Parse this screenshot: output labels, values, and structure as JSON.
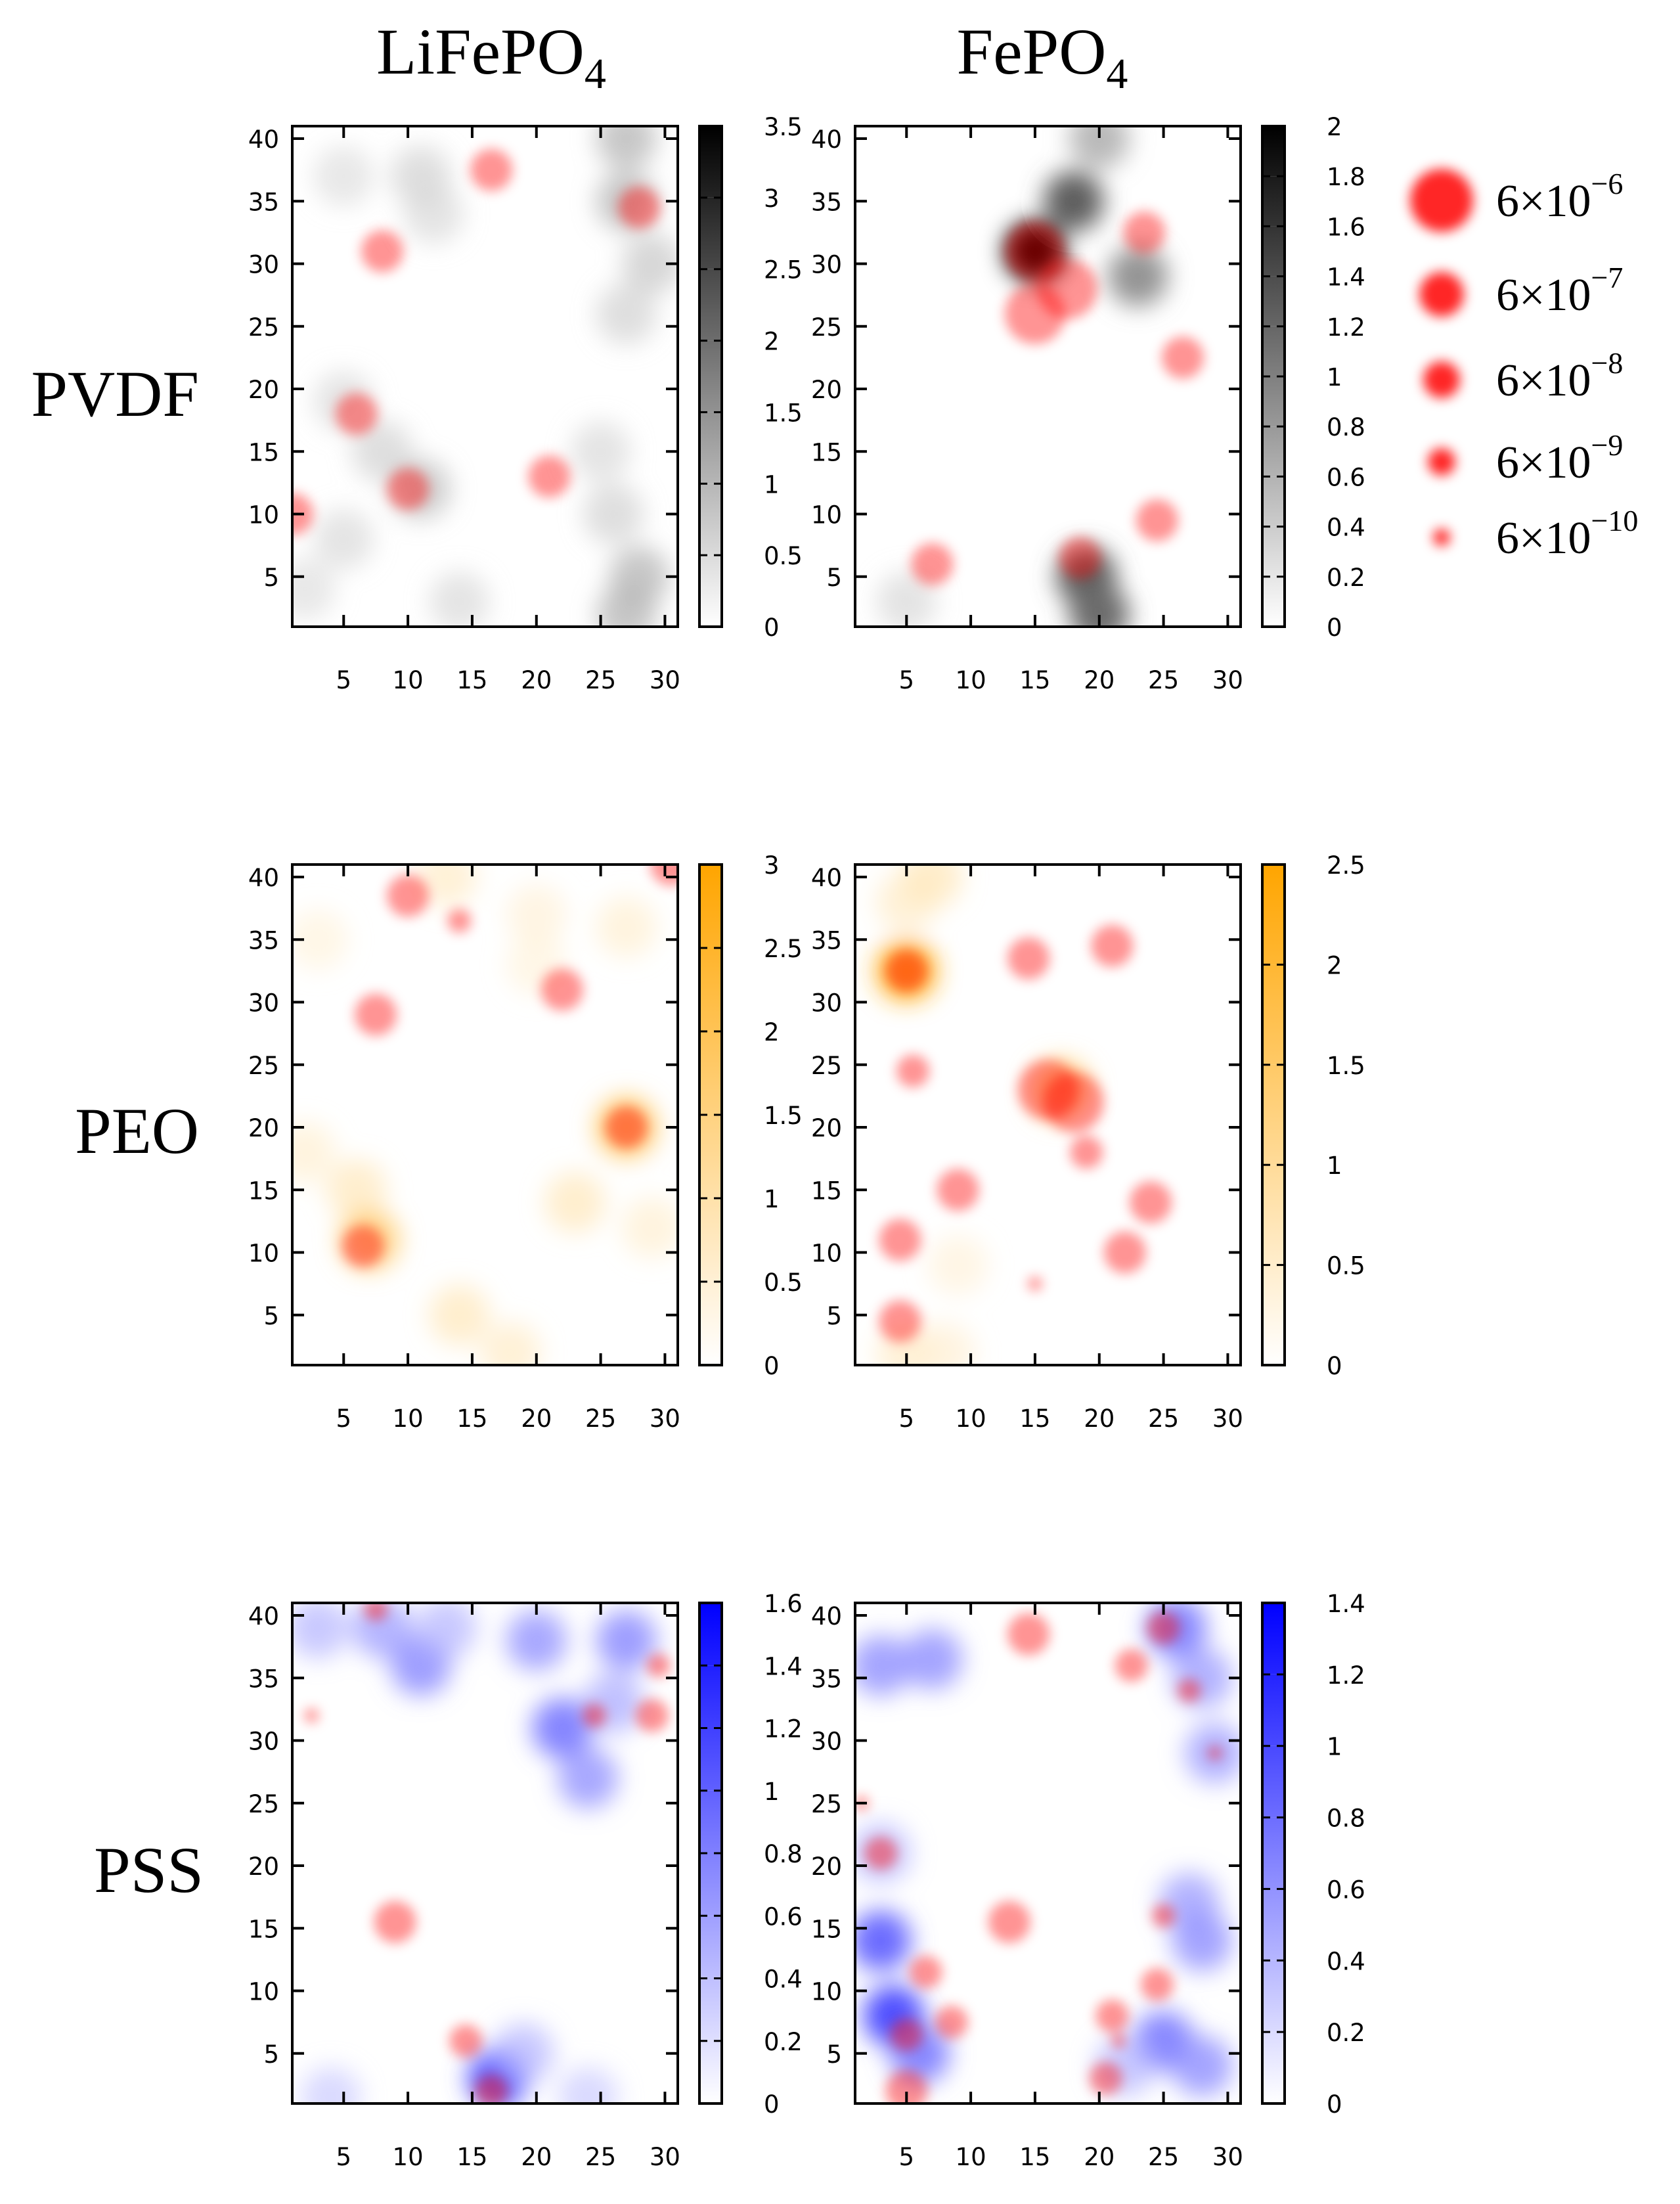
{
  "figure": {
    "column_titles": [
      {
        "text": "LiFePO",
        "sub": "4"
      },
      {
        "text": "FePO",
        "sub": "4"
      }
    ],
    "row_titles": [
      "PVDF",
      "PEO",
      "PSS"
    ],
    "legend": {
      "mantissa": "6×10",
      "exponents": [
        "−6",
        "−7",
        "−8",
        "−9",
        "−10"
      ],
      "marker_color": "#ff0000"
    }
  },
  "chart_data": [
    {
      "type": "heatmap",
      "row": "PVDF",
      "column": "LiFePO4",
      "colormap": {
        "low": "#ffffff",
        "high": "#000000"
      },
      "xlim": [
        1,
        31
      ],
      "ylim": [
        1,
        41
      ],
      "xticks": [
        5,
        10,
        15,
        20,
        25,
        30
      ],
      "yticks": [
        5,
        10,
        15,
        20,
        25,
        30,
        35,
        40
      ],
      "colorbar": {
        "range": [
          0,
          3.5
        ],
        "ticks": [
          "0",
          "0.5",
          "1",
          "1.5",
          "2",
          "2.5",
          "3",
          "3.5"
        ]
      },
      "blobs": [
        {
          "x": 5,
          "y": 37,
          "w": 0.45
        },
        {
          "x": 11,
          "y": 37,
          "w": 0.6
        },
        {
          "x": 12,
          "y": 34,
          "w": 0.5
        },
        {
          "x": 27,
          "y": 40,
          "w": 0.9
        },
        {
          "x": 27,
          "y": 35,
          "w": 0.9
        },
        {
          "x": 29,
          "y": 30,
          "w": 0.7
        },
        {
          "x": 27,
          "y": 26,
          "w": 0.6
        },
        {
          "x": 5,
          "y": 19,
          "w": 0.5
        },
        {
          "x": 8,
          "y": 15,
          "w": 0.6
        },
        {
          "x": 11,
          "y": 12,
          "w": 0.8
        },
        {
          "x": 5,
          "y": 8,
          "w": 0.5
        },
        {
          "x": 2,
          "y": 4,
          "w": 0.45
        },
        {
          "x": 14,
          "y": 3,
          "w": 0.5
        },
        {
          "x": 25,
          "y": 15,
          "w": 0.5
        },
        {
          "x": 26,
          "y": 10,
          "w": 0.6
        },
        {
          "x": 28,
          "y": 5,
          "w": 0.9
        },
        {
          "x": 27,
          "y": 2,
          "w": 0.9
        }
      ],
      "markers": [
        {
          "x": 16.5,
          "y": 37.5,
          "size": 6e-07
        },
        {
          "x": 28,
          "y": 34.5,
          "size": 6e-07
        },
        {
          "x": 8,
          "y": 31,
          "size": 6e-07
        },
        {
          "x": 6,
          "y": 18,
          "size": 6e-07
        },
        {
          "x": 10,
          "y": 12,
          "size": 6e-07
        },
        {
          "x": 21,
          "y": 13,
          "size": 6e-07
        },
        {
          "x": 1,
          "y": 10,
          "size": 6e-07
        }
      ]
    },
    {
      "type": "heatmap",
      "row": "PVDF",
      "column": "FePO4",
      "colormap": {
        "low": "#ffffff",
        "high": "#000000"
      },
      "xlim": [
        1,
        31
      ],
      "ylim": [
        1,
        41
      ],
      "xticks": [
        5,
        10,
        15,
        20,
        25,
        30
      ],
      "yticks": [
        5,
        10,
        15,
        20,
        25,
        30,
        35,
        40
      ],
      "colorbar": {
        "range": [
          0,
          2
        ],
        "ticks": [
          "0",
          "0.2",
          "0.4",
          "0.6",
          "0.8",
          "1",
          "1.2",
          "1.4",
          "1.6",
          "1.8",
          "2"
        ]
      },
      "blobs": [
        {
          "x": 15,
          "y": 31,
          "w": 1.9
        },
        {
          "x": 18,
          "y": 35,
          "w": 1.1
        },
        {
          "x": 20,
          "y": 40,
          "w": 0.6
        },
        {
          "x": 23,
          "y": 29,
          "w": 0.8
        },
        {
          "x": 19,
          "y": 5,
          "w": 1.1
        },
        {
          "x": 20,
          "y": 2,
          "w": 1.0
        },
        {
          "x": 5,
          "y": 3,
          "w": 0.3
        }
      ],
      "markers": [
        {
          "x": 15,
          "y": 31,
          "size": 6e-06
        },
        {
          "x": 17.5,
          "y": 28,
          "size": 6e-06
        },
        {
          "x": 15,
          "y": 26,
          "size": 6e-06
        },
        {
          "x": 23.5,
          "y": 32.5,
          "size": 6e-07
        },
        {
          "x": 26.5,
          "y": 22.5,
          "size": 6e-07
        },
        {
          "x": 24.5,
          "y": 9.5,
          "size": 6e-07
        },
        {
          "x": 18.5,
          "y": 6.5,
          "size": 6e-07
        },
        {
          "x": 7,
          "y": 6,
          "size": 6e-07
        }
      ]
    },
    {
      "type": "heatmap",
      "row": "PEO",
      "column": "LiFePO4",
      "colormap": {
        "low": "#ffffff",
        "high": "#ffa500"
      },
      "xlim": [
        1,
        31
      ],
      "ylim": [
        1,
        41
      ],
      "xticks": [
        5,
        10,
        15,
        20,
        25,
        30
      ],
      "yticks": [
        5,
        10,
        15,
        20,
        25,
        30,
        35,
        40
      ],
      "colorbar": {
        "range": [
          0,
          3
        ],
        "ticks": [
          "0",
          "0.5",
          "1",
          "1.5",
          "2",
          "2.5",
          "3"
        ]
      },
      "blobs": [
        {
          "x": 13,
          "y": 40,
          "w": 0.6
        },
        {
          "x": 20,
          "y": 37,
          "w": 0.45
        },
        {
          "x": 27,
          "y": 36,
          "w": 0.5
        },
        {
          "x": 20,
          "y": 33,
          "w": 0.4
        },
        {
          "x": 3,
          "y": 35,
          "w": 0.4
        },
        {
          "x": 27,
          "y": 20,
          "w": 1.5
        },
        {
          "x": 23,
          "y": 14,
          "w": 0.7
        },
        {
          "x": 29,
          "y": 12,
          "w": 0.5
        },
        {
          "x": 6,
          "y": 15,
          "w": 0.7
        },
        {
          "x": 7,
          "y": 11,
          "w": 1.3
        },
        {
          "x": 2,
          "y": 18,
          "w": 0.5
        },
        {
          "x": 14,
          "y": 5,
          "w": 0.7
        },
        {
          "x": 18,
          "y": 2,
          "w": 0.6
        }
      ],
      "markers": [
        {
          "x": 10,
          "y": 38.5,
          "size": 6e-07
        },
        {
          "x": 14,
          "y": 36.5,
          "size": 6e-09
        },
        {
          "x": 22,
          "y": 31,
          "size": 6e-07
        },
        {
          "x": 7.5,
          "y": 29,
          "size": 6e-07
        },
        {
          "x": 27,
          "y": 20,
          "size": 6e-07
        },
        {
          "x": 6.5,
          "y": 10.5,
          "size": 6e-07
        },
        {
          "x": 30.5,
          "y": 41,
          "size": 6e-07
        }
      ]
    },
    {
      "type": "heatmap",
      "row": "PEO",
      "column": "FePO4",
      "colormap": {
        "low": "#ffffff",
        "high": "#ffa500"
      },
      "xlim": [
        1,
        31
      ],
      "ylim": [
        1,
        41
      ],
      "xticks": [
        5,
        10,
        15,
        20,
        25,
        30
      ],
      "yticks": [
        5,
        10,
        15,
        20,
        25,
        30,
        35,
        40
      ],
      "colorbar": {
        "range": [
          0,
          2.5
        ],
        "ticks": [
          "0",
          "0.5",
          "1",
          "1.5",
          "2",
          "2.5"
        ]
      },
      "blobs": [
        {
          "x": 5,
          "y": 32.5,
          "w": 1.9
        },
        {
          "x": 5,
          "y": 38,
          "w": 0.5
        },
        {
          "x": 7,
          "y": 40,
          "w": 0.6
        },
        {
          "x": 17,
          "y": 23,
          "w": 1.1
        },
        {
          "x": 9,
          "y": 9,
          "w": 0.35
        },
        {
          "x": 5,
          "y": 2,
          "w": 0.5
        },
        {
          "x": 8,
          "y": 2,
          "w": 0.4
        }
      ],
      "markers": [
        {
          "x": 5,
          "y": 32.5,
          "size": 6e-07
        },
        {
          "x": 14.5,
          "y": 33.5,
          "size": 6e-07
        },
        {
          "x": 21,
          "y": 34.5,
          "size": 6e-07
        },
        {
          "x": 5.5,
          "y": 24.5,
          "size": 6e-08
        },
        {
          "x": 16,
          "y": 23,
          "size": 6e-06
        },
        {
          "x": 18,
          "y": 22,
          "size": 6e-06
        },
        {
          "x": 19,
          "y": 18,
          "size": 6e-08
        },
        {
          "x": 9,
          "y": 15,
          "size": 6e-07
        },
        {
          "x": 24,
          "y": 14,
          "size": 6e-07
        },
        {
          "x": 4.5,
          "y": 11,
          "size": 6e-07
        },
        {
          "x": 22,
          "y": 10,
          "size": 6e-07
        },
        {
          "x": 15,
          "y": 7.5,
          "size": 6e-10
        },
        {
          "x": 4.5,
          "y": 4.5,
          "size": 6e-07
        }
      ]
    },
    {
      "type": "heatmap",
      "row": "PSS",
      "column": "LiFePO4",
      "colormap": {
        "low": "#ffffff",
        "high": "#0000ff"
      },
      "xlim": [
        1,
        31
      ],
      "ylim": [
        1,
        41
      ],
      "xticks": [
        5,
        10,
        15,
        20,
        25,
        30
      ],
      "yticks": [
        5,
        10,
        15,
        20,
        25,
        30,
        35,
        40
      ],
      "colorbar": {
        "range": [
          0,
          1.6
        ],
        "ticks": [
          "0",
          "0.2",
          "0.4",
          "0.6",
          "0.8",
          "1",
          "1.2",
          "1.4",
          "1.6"
        ]
      },
      "blobs": [
        {
          "x": 3,
          "y": 39,
          "w": 0.4
        },
        {
          "x": 8,
          "y": 39,
          "w": 0.5
        },
        {
          "x": 11,
          "y": 36,
          "w": 0.6
        },
        {
          "x": 13,
          "y": 39,
          "w": 0.4
        },
        {
          "x": 20,
          "y": 38,
          "w": 0.55
        },
        {
          "x": 27,
          "y": 38,
          "w": 0.6
        },
        {
          "x": 22,
          "y": 31,
          "w": 0.7
        },
        {
          "x": 24,
          "y": 27,
          "w": 0.55
        },
        {
          "x": 26,
          "y": 33,
          "w": 0.45
        },
        {
          "x": 17,
          "y": 3,
          "w": 0.9
        },
        {
          "x": 19,
          "y": 5,
          "w": 0.4
        },
        {
          "x": 4,
          "y": 1.5,
          "w": 0.3
        },
        {
          "x": 24,
          "y": 1.5,
          "w": 0.3
        }
      ],
      "markers": [
        {
          "x": 7.5,
          "y": 40.5,
          "size": 6e-09
        },
        {
          "x": 29.5,
          "y": 36,
          "size": 6e-09
        },
        {
          "x": 2.5,
          "y": 32,
          "size": 6e-10
        },
        {
          "x": 24.5,
          "y": 32,
          "size": 6e-09
        },
        {
          "x": 29,
          "y": 32,
          "size": 6e-08
        },
        {
          "x": 9,
          "y": 15.5,
          "size": 6e-07
        },
        {
          "x": 14.5,
          "y": 6,
          "size": 6e-08
        },
        {
          "x": 16.5,
          "y": 2,
          "size": 6e-08
        }
      ]
    },
    {
      "type": "heatmap",
      "row": "PSS",
      "column": "FePO4",
      "colormap": {
        "low": "#ffffff",
        "high": "#0000ff"
      },
      "xlim": [
        1,
        31
      ],
      "ylim": [
        1,
        41
      ],
      "xticks": [
        5,
        10,
        15,
        20,
        25,
        30
      ],
      "yticks": [
        5,
        10,
        15,
        20,
        25,
        30,
        35,
        40
      ],
      "colorbar": {
        "range": [
          0,
          1.4
        ],
        "ticks": [
          "0",
          "0.2",
          "0.4",
          "0.6",
          "0.8",
          "1",
          "1.2",
          "1.4"
        ]
      },
      "blobs": [
        {
          "x": 3,
          "y": 36,
          "w": 0.5
        },
        {
          "x": 7,
          "y": 36.5,
          "w": 0.5
        },
        {
          "x": 26,
          "y": 39,
          "w": 0.6
        },
        {
          "x": 28,
          "y": 35,
          "w": 0.45
        },
        {
          "x": 29,
          "y": 29,
          "w": 0.45
        },
        {
          "x": 27,
          "y": 17,
          "w": 0.45
        },
        {
          "x": 28,
          "y": 14,
          "w": 0.5
        },
        {
          "x": 3,
          "y": 14,
          "w": 0.7
        },
        {
          "x": 4,
          "y": 8,
          "w": 0.85
        },
        {
          "x": 6,
          "y": 5,
          "w": 0.6
        },
        {
          "x": 3,
          "y": 21,
          "w": 0.35
        },
        {
          "x": 25,
          "y": 6,
          "w": 0.6
        },
        {
          "x": 28,
          "y": 4,
          "w": 0.5
        },
        {
          "x": 22,
          "y": 4,
          "w": 0.35
        }
      ],
      "markers": [
        {
          "x": 14.5,
          "y": 38.5,
          "size": 6e-07
        },
        {
          "x": 25,
          "y": 39,
          "size": 6e-08
        },
        {
          "x": 22.5,
          "y": 36,
          "size": 6e-08
        },
        {
          "x": 27,
          "y": 34,
          "size": 6e-09
        },
        {
          "x": 29,
          "y": 29,
          "size": 6e-10
        },
        {
          "x": 1.5,
          "y": 25,
          "size": 6e-10
        },
        {
          "x": 3,
          "y": 21,
          "size": 6e-08
        },
        {
          "x": 13,
          "y": 15.5,
          "size": 6e-07
        },
        {
          "x": 25,
          "y": 16,
          "size": 6e-09
        },
        {
          "x": 6.5,
          "y": 11.5,
          "size": 6e-08
        },
        {
          "x": 24.5,
          "y": 10.5,
          "size": 6e-08
        },
        {
          "x": 8.5,
          "y": 7.5,
          "size": 6e-08
        },
        {
          "x": 21,
          "y": 8,
          "size": 6e-08
        },
        {
          "x": 5,
          "y": 6.5,
          "size": 6e-08
        },
        {
          "x": 21.5,
          "y": 6,
          "size": 6e-10
        },
        {
          "x": 20.5,
          "y": 3,
          "size": 6e-08
        },
        {
          "x": 5,
          "y": 2,
          "size": 6e-07
        }
      ]
    }
  ]
}
